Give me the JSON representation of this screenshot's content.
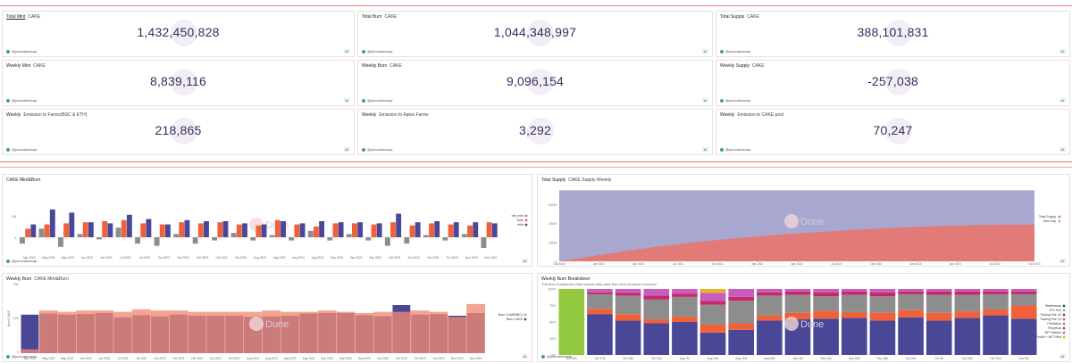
{
  "counters": [
    {
      "title": "Total Mint",
      "subtitle": "CAKE",
      "value": "1,432,450,828",
      "author": "@pancakeswap",
      "underline": true
    },
    {
      "title": "Total Burn",
      "subtitle": "CAKE",
      "value": "1,044,348,997",
      "author": "@pancakeswap"
    },
    {
      "title": "Total Supply",
      "subtitle": "CAKE",
      "value": "388,101,831",
      "author": "@pancakeswap"
    },
    {
      "title": "Weekly Mint",
      "subtitle": "CAKE",
      "value": "8,839,116",
      "author": "@pancakeswap"
    },
    {
      "title": "Weekly Burn",
      "subtitle": "CAKE",
      "value": "9,096,154",
      "author": "@pancakeswap"
    },
    {
      "title": "Weekly Supply",
      "subtitle": "CAKE",
      "value": "-257,038",
      "author": "@pancakeswap"
    },
    {
      "title": "Weekly",
      "subtitle": "Emission to Farms(BSC & ETH)",
      "value": "218,865",
      "author": "@pancakeswap"
    },
    {
      "title": "Weekly",
      "subtitle": "Emission to Aptos Farms",
      "value": "3,292",
      "author": "@pancakeswap"
    },
    {
      "title": "Weekly",
      "subtitle": "Emission to CAKE pool",
      "value": "70,247",
      "author": "@pancakeswap"
    }
  ],
  "tag": "⇄",
  "panels": {
    "mintburn": {
      "title": "CAKE Mint&Burn",
      "author": "@pancakeswap",
      "watermark": "Dune"
    },
    "supply": {
      "title": "Total Supply",
      "subtitle": "CAKE Supply Weekly",
      "author": "@pancakeswap",
      "watermark": "Dune"
    },
    "weeklyburn": {
      "title": "Weekly Burn",
      "subtitle": "CAKE Mint&Burn",
      "author": "@pancakeswap",
      "watermark": "Dune"
    },
    "breakdown": {
      "title": "Weekly Burn Breakdown",
      "subtitle": "The burn breakdown chart counts only cake burn from protocol revenues.",
      "author": "@pancakeswap",
      "watermark": "Dune"
    }
  },
  "colors": {
    "mint": "#4b4797",
    "burn": "#f0613b",
    "net": "#8d8d8d",
    "supply_area": "#e27a78",
    "cap_area": "#a7a7cf",
    "accent_line": "#e77a7a"
  },
  "chart_data": [
    {
      "type": "bar",
      "title": "CAKE Mint&Burn",
      "categories": [
        "Mar 2023",
        "May 2023",
        "May 2023",
        "Jun 2023",
        "Jun 2023",
        "Jul 2023",
        "Jul 2023",
        "Oct 2023",
        "Oct 2023",
        "Oct 2023",
        "Oct 2023",
        "Oct 2023",
        "Aug 2023",
        "Aug 2023",
        "Aug 2023",
        "Aug 2023",
        "Sep 2023",
        "Sep 2023",
        "Sep 2023",
        "Oct 2023",
        "Oct 2023",
        "Oct 2023",
        "Oct 2023",
        "Nov 2023",
        "Nov 2023"
      ],
      "series": [
        {
          "name": "net_mint",
          "values": [
            -0.6,
            0.8,
            -0.9,
            0.3,
            -0.2,
            0.9,
            -0.6,
            -0.8,
            0.3,
            -0.6,
            -0.3,
            0.4,
            -0.3,
            0.2,
            -0.3,
            0.6,
            -0.3,
            0.3,
            -0.3,
            -0.8,
            -0.6,
            0.2,
            -0.3,
            0.3,
            -1.0
          ]
        },
        {
          "name": "burn",
          "values": [
            0.8,
            1.2,
            1.3,
            1.4,
            1.5,
            1.6,
            1.3,
            1.2,
            1.4,
            1.3,
            1.4,
            1.2,
            1.1,
            1.6,
            1.2,
            1.0,
            1.3,
            1.3,
            1.2,
            1.4,
            1.1,
            1.3,
            1.2,
            1.1,
            1.4
          ]
        },
        {
          "name": "mint",
          "values": [
            1.2,
            2.6,
            2.3,
            1.4,
            1.3,
            2.1,
            1.7,
            1.2,
            1.6,
            1.5,
            1.5,
            1.3,
            1.2,
            1.5,
            1.3,
            1.5,
            1.4,
            1.4,
            1.3,
            2.2,
            1.4,
            1.5,
            1.4,
            1.4,
            1.3
          ]
        }
      ],
      "yticks": [
        "2M",
        "0"
      ],
      "legend": "right"
    },
    {
      "type": "area",
      "title": "Total Supply",
      "subtitle": "CAKE Supply Weekly",
      "x": [
        "Oct 2020",
        "Jan 2021",
        "Apr 2021",
        "Jul 2021",
        "Oct 2021",
        "Jan 2022",
        "Apr 2022",
        "Jul 2022",
        "Oct 2022",
        "Jan 2023",
        "Apr 2023",
        "Jul 2023",
        "Oct 2023"
      ],
      "series": [
        {
          "name": "Total Supply",
          "values": [
            0,
            65,
            130,
            180,
            225,
            262,
            295,
            320,
            345,
            362,
            378,
            386,
            388
          ]
        },
        {
          "name": "Max Cap",
          "values": [
            750,
            750,
            750,
            750,
            750,
            750,
            750,
            750,
            750,
            750,
            750,
            750,
            750
          ]
        }
      ],
      "yticks": [
        "600M",
        "400M",
        "200M",
        "0"
      ],
      "legend": "right"
    },
    {
      "type": "bar",
      "title": "Weekly Burn",
      "subtitle": "CAKE Mint&Burn",
      "categories": [
        "Mar 2023",
        "May 2023",
        "May 2023",
        "Jun 2023",
        "Jun 2023",
        "Jul 2023",
        "Jul 2023",
        "Oct 2023",
        "Oct 2023",
        "Oct 2023",
        "Oct 2023",
        "Oct 2023",
        "Aug 2023",
        "Aug 2023",
        "Aug 2023",
        "Aug 2023",
        "Sep 2023",
        "Sep 2023",
        "Sep 2023",
        "Oct 2023",
        "Oct 2023",
        "Oct 2023",
        "Oct 2023",
        "Nov 2023",
        "Nov 2023"
      ],
      "series": [
        {
          "name": "Burn Cnt(fGBDC)",
          "values": [
            3,
            33,
            32,
            33,
            33,
            32,
            34,
            33,
            33,
            32,
            32,
            32,
            32,
            33,
            32,
            32,
            33,
            32,
            31,
            32,
            32,
            33,
            32,
            28,
            38
          ]
        },
        {
          "name": "Burn CAKE",
          "values": [
            7.2,
            7.4,
            7.2,
            7.3,
            7.5,
            6.7,
            7.1,
            6.9,
            7.2,
            7.0,
            7.0,
            7.0,
            6.8,
            6.9,
            7.0,
            7.4,
            7.5,
            7.5,
            7.1,
            6.9,
            9.0,
            7.2,
            7.3,
            7.0,
            7.5
          ]
        }
      ],
      "yticks": [
        "20K",
        "10K",
        "0"
      ],
      "ylabel": "Burn CAKE",
      "legend": "right"
    },
    {
      "type": "bar",
      "title": "Weekly Burn Breakdown",
      "categories": [
        "Oct 10th",
        "Oct 17th",
        "Oct 24th",
        "Oct 31st",
        "Aug 7th",
        "Aug 14th",
        "Aug 21st",
        "Aug 28th",
        "Sep 4th",
        "Sep 11th",
        "Sep 18th",
        "Sep 25th",
        "Oct 2nd",
        "Oct 9th",
        "Oct 16th",
        "Oct 23rd",
        "Nov 6th"
      ],
      "series": [
        {
          "name": "Stableswap",
          "values": [
            0,
            0,
            0,
            0,
            0,
            0,
            0,
            0,
            0,
            0,
            0,
            0,
            0,
            0,
            0,
            0,
            0
          ]
        },
        {
          "name": "IFO Fee",
          "values": [
            100,
            0,
            0,
            0,
            0,
            0,
            0,
            0,
            0,
            0,
            0,
            0,
            0,
            0,
            0,
            0,
            0
          ]
        },
        {
          "name": "Trading Fee V2",
          "values": [
            0,
            62,
            52,
            48,
            50,
            34,
            38,
            52,
            54,
            55,
            56,
            52,
            57,
            52,
            56,
            60,
            55
          ]
        },
        {
          "name": "Trading Fee V3",
          "values": [
            0,
            8,
            10,
            6,
            8,
            12,
            10,
            8,
            10,
            12,
            9,
            12,
            11,
            12,
            10,
            9,
            20
          ]
        },
        {
          "name": "Prediction",
          "values": [
            0,
            22,
            28,
            30,
            30,
            30,
            34,
            30,
            27,
            22,
            26,
            25,
            24,
            27,
            25,
            23,
            17
          ]
        },
        {
          "name": "Perpetual",
          "values": [
            0,
            3,
            4,
            6,
            5,
            6,
            6,
            5,
            5,
            6,
            5,
            6,
            4,
            5,
            5,
            4,
            4
          ]
        },
        {
          "name": "NFT Market",
          "values": [
            0,
            5,
            6,
            10,
            7,
            12,
            12,
            5,
            4,
            5,
            4,
            5,
            4,
            4,
            4,
            4,
            4
          ]
        },
        {
          "name": "Profile + NFT Mint",
          "values": [
            0,
            0,
            0,
            0,
            0,
            6,
            0,
            0,
            0,
            0,
            0,
            0,
            0,
            0,
            0,
            0,
            0
          ]
        }
      ],
      "yticks": [
        "100%",
        "75%",
        "50%",
        "25%",
        "0%"
      ],
      "legend": "right"
    }
  ]
}
